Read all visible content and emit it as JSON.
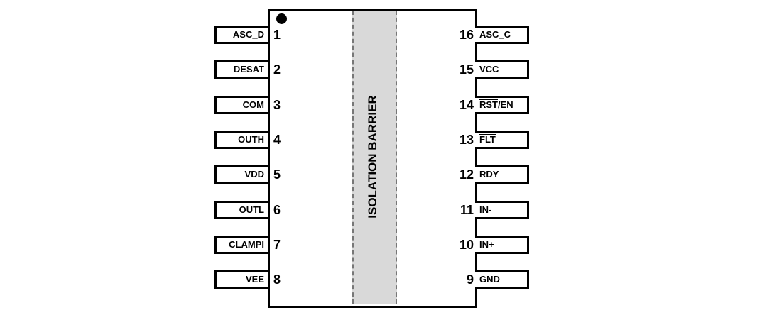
{
  "barrier_label": "ISOLATION BARRIER",
  "left_pins": [
    {
      "num": "1",
      "name": "ASC_D"
    },
    {
      "num": "2",
      "name": "DESAT"
    },
    {
      "num": "3",
      "name": "COM"
    },
    {
      "num": "4",
      "name": "OUTH"
    },
    {
      "num": "5",
      "name": "VDD"
    },
    {
      "num": "6",
      "name": "OUTL"
    },
    {
      "num": "7",
      "name": "CLAMPI"
    },
    {
      "num": "8",
      "name": "VEE"
    }
  ],
  "right_pins": [
    {
      "num": "16",
      "name": "ASC_C"
    },
    {
      "num": "15",
      "name": "VCC"
    },
    {
      "num": "14",
      "name": "RST/EN",
      "overline": "RST",
      "rest": "/EN"
    },
    {
      "num": "13",
      "name": "FLT",
      "overline": "FLT",
      "rest": ""
    },
    {
      "num": "12",
      "name": "RDY"
    },
    {
      "num": "11",
      "name": "IN-"
    },
    {
      "num": "10",
      "name": "IN+"
    },
    {
      "num": "9",
      "name": "GND"
    }
  ]
}
